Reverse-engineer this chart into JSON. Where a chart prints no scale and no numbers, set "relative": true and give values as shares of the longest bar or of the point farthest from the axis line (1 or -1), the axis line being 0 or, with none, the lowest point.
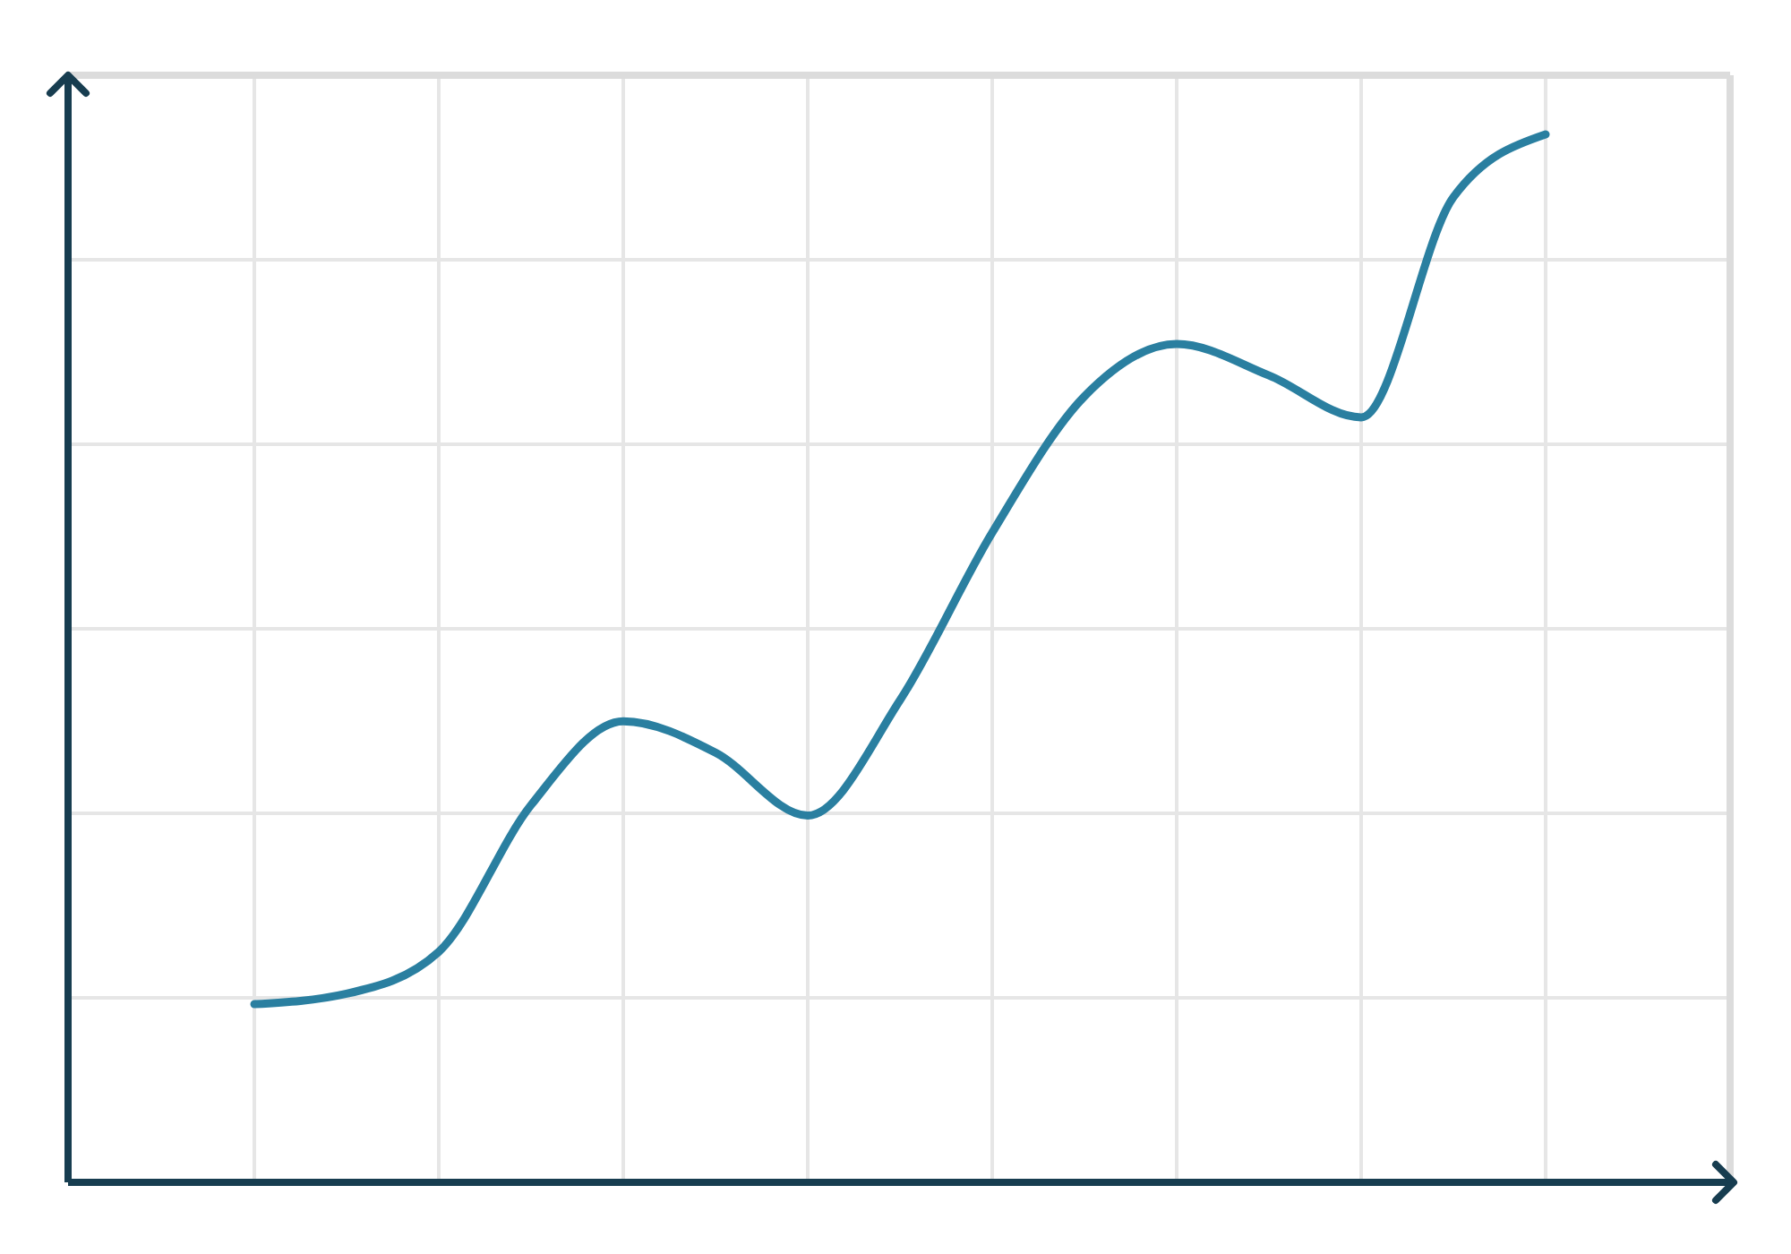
{
  "chart_data": {
    "type": "line",
    "relative": true,
    "grid": true,
    "marker": "none",
    "line_style": "solid",
    "categories": [
      null,
      null,
      null,
      null,
      null,
      null,
      null,
      null,
      null,
      null,
      null,
      null,
      null,
      null,
      null
    ],
    "series": [
      {
        "color": "#2a7fa0",
        "values": [
          0.17,
          0.18,
          0.22,
          0.36,
          0.44,
          0.41,
          0.35,
          0.46,
          0.62,
          0.75,
          0.8,
          0.77,
          0.73,
          0.94,
          1
        ]
      }
    ]
  }
}
